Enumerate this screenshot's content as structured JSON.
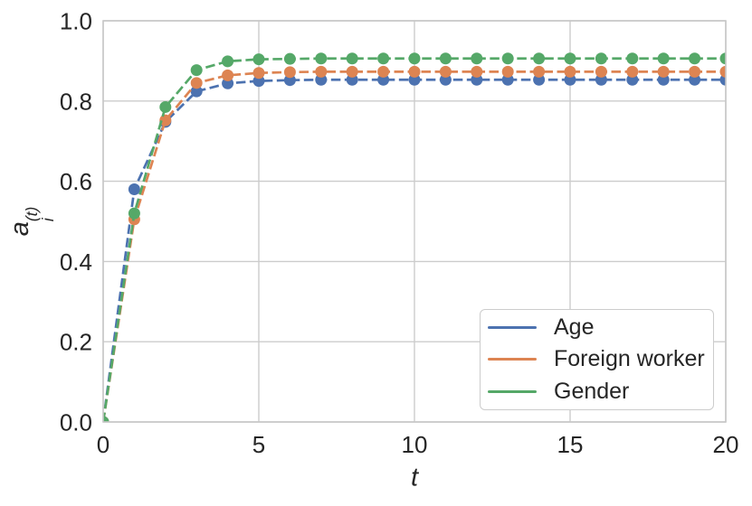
{
  "chart_data": {
    "type": "line",
    "title": "",
    "xlabel": "t",
    "ylabel": "a_i^(t)",
    "ylabel_parts": {
      "base": "a",
      "sub": "i",
      "sup": "(t)"
    },
    "xlim": [
      0,
      20
    ],
    "ylim": [
      0.0,
      1.0
    ],
    "xticks": [
      0,
      5,
      10,
      15,
      20
    ],
    "xticklabels": [
      "0",
      "5",
      "10",
      "15",
      "20"
    ],
    "yticks": [
      0.0,
      0.2,
      0.4,
      0.6,
      0.8,
      1.0
    ],
    "yticklabels": [
      "0.0",
      "0.2",
      "0.4",
      "0.6",
      "0.8",
      "1.0"
    ],
    "grid": true,
    "legend_position": "lower right",
    "line_style": "dashed",
    "marker": "circle",
    "x": [
      0,
      1,
      2,
      3,
      4,
      5,
      6,
      7,
      8,
      9,
      10,
      11,
      12,
      13,
      14,
      15,
      16,
      17,
      18,
      19,
      20
    ],
    "series": [
      {
        "name": "Age",
        "color": "#4C72B0",
        "values": [
          0.0,
          0.58,
          0.748,
          0.824,
          0.844,
          0.85,
          0.852,
          0.853,
          0.853,
          0.853,
          0.853,
          0.853,
          0.853,
          0.853,
          0.853,
          0.853,
          0.853,
          0.853,
          0.853,
          0.853,
          0.853
        ]
      },
      {
        "name": "Foreign worker",
        "color": "#DD8452",
        "values": [
          0.0,
          0.505,
          0.752,
          0.845,
          0.864,
          0.87,
          0.872,
          0.873,
          0.873,
          0.873,
          0.873,
          0.873,
          0.873,
          0.873,
          0.873,
          0.873,
          0.873,
          0.873,
          0.873,
          0.873,
          0.873
        ]
      },
      {
        "name": "Gender",
        "color": "#55A868",
        "values": [
          0.0,
          0.52,
          0.785,
          0.877,
          0.899,
          0.904,
          0.905,
          0.906,
          0.906,
          0.906,
          0.906,
          0.906,
          0.906,
          0.906,
          0.906,
          0.906,
          0.906,
          0.906,
          0.906,
          0.906,
          0.906
        ]
      }
    ]
  },
  "legend": {
    "items": [
      {
        "label": "Age",
        "color": "#4C72B0"
      },
      {
        "label": "Foreign worker",
        "color": "#DD8452"
      },
      {
        "label": "Gender",
        "color": "#55A868"
      }
    ]
  },
  "style": {
    "background": "#ffffff",
    "grid_color": "#cccccc",
    "spine_color": "#c8c8c8",
    "text_color": "#262626"
  }
}
